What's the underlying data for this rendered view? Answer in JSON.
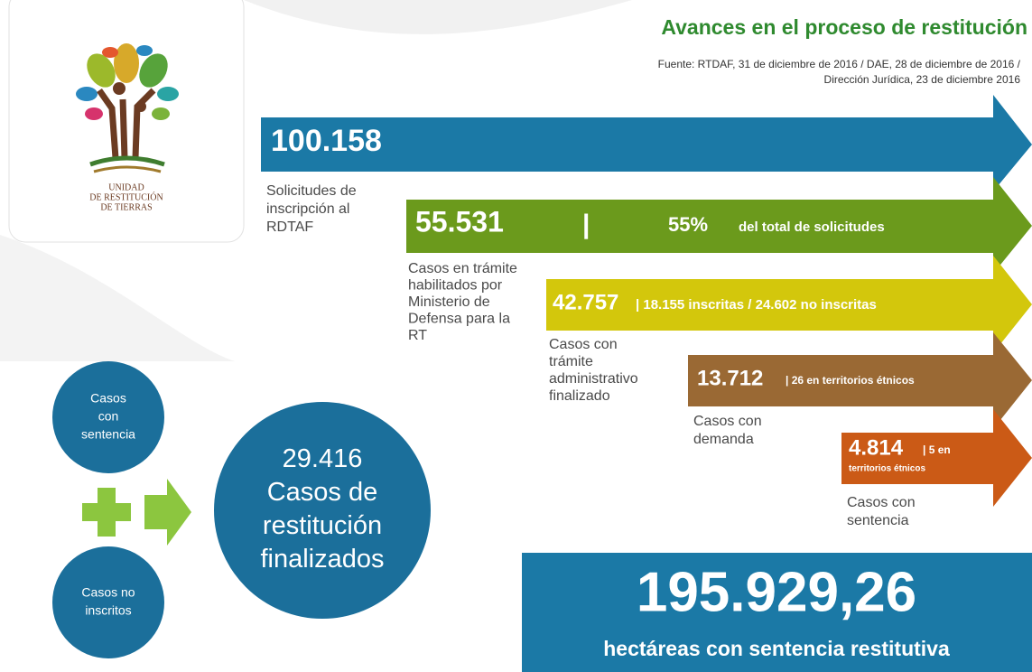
{
  "logo": {
    "lines": [
      "UNIDAD",
      "DE RESTITUCIÓN",
      "DE TIERRAS"
    ]
  },
  "header": {
    "title": "Avances en el proceso de restitución",
    "source": [
      "Fuente: RTDAF, 31 de diciembre de 2016 / DAE, 28 de diciembre de 2016 /",
      "Dirección Jurídica, 23 de diciembre 2016"
    ]
  },
  "stages": [
    {
      "value": "100.158",
      "detail": [],
      "label": [
        "Solicitudes de",
        "inscripción al",
        "RDTAF"
      ]
    },
    {
      "value": "55.531",
      "detail": [
        "|",
        "55%",
        "del total de solicitudes"
      ],
      "label": [
        "Casos en trámite",
        "habilitados por",
        "Ministerio de",
        "Defensa para la",
        "RT"
      ]
    },
    {
      "value": "42.757",
      "detail": [
        "| 18.155 inscritas / 24.602 no inscritas"
      ],
      "label": [
        "Casos con",
        "trámite",
        "administrativo",
        "finalizado"
      ]
    },
    {
      "value": "13.712",
      "detail": [
        "| 26 en territorios étnicos"
      ],
      "label": [
        "Casos con",
        "demanda"
      ]
    },
    {
      "value": "4.814",
      "detail": [
        "| 5 en",
        "territorios étnicos"
      ],
      "label": [
        "Casos con",
        "sentencia"
      ]
    }
  ],
  "circles": {
    "with_sentence": [
      "Casos",
      "con",
      "sentencia"
    ],
    "not_registered": [
      "Casos no",
      "inscritos"
    ],
    "result": [
      "29.416",
      "Casos de",
      "restitución",
      "finalizados"
    ]
  },
  "total": {
    "value": "195.929,26",
    "label": "hectáreas con sentencia restitutiva"
  }
}
